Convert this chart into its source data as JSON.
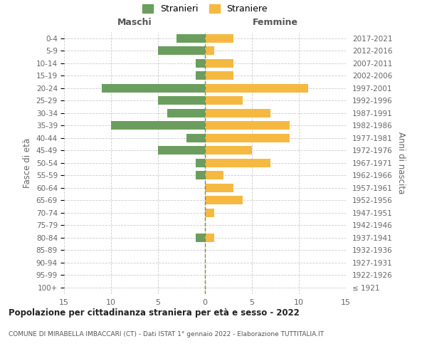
{
  "age_groups": [
    "100+",
    "95-99",
    "90-94",
    "85-89",
    "80-84",
    "75-79",
    "70-74",
    "65-69",
    "60-64",
    "55-59",
    "50-54",
    "45-49",
    "40-44",
    "35-39",
    "30-34",
    "25-29",
    "20-24",
    "15-19",
    "10-14",
    "5-9",
    "0-4"
  ],
  "birth_years": [
    "≤ 1921",
    "1922-1926",
    "1927-1931",
    "1932-1936",
    "1937-1941",
    "1942-1946",
    "1947-1951",
    "1952-1956",
    "1957-1961",
    "1962-1966",
    "1967-1971",
    "1972-1976",
    "1977-1981",
    "1982-1986",
    "1987-1991",
    "1992-1996",
    "1997-2001",
    "2002-2006",
    "2007-2011",
    "2012-2016",
    "2017-2021"
  ],
  "maschi": [
    0,
    0,
    0,
    0,
    1,
    0,
    0,
    0,
    0,
    1,
    1,
    5,
    2,
    10,
    4,
    5,
    11,
    1,
    1,
    5,
    3
  ],
  "femmine": [
    0,
    0,
    0,
    0,
    1,
    0,
    1,
    4,
    3,
    2,
    7,
    5,
    9,
    9,
    7,
    4,
    11,
    3,
    3,
    1,
    3
  ],
  "male_color": "#6b9e5e",
  "female_color": "#f5b942",
  "background_color": "#ffffff",
  "grid_color": "#cccccc",
  "title": "Popolazione per cittadinanza straniera per età e sesso - 2022",
  "subtitle": "COMUNE DI MIRABELLA IMBACCARI (CT) - Dati ISTAT 1° gennaio 2022 - Elaborazione TUTTITALIA.IT",
  "ylabel_left": "Fasce di età",
  "ylabel_right": "Anni di nascita",
  "xlabel_left": "Maschi",
  "xlabel_right": "Femmine",
  "legend_male": "Stranieri",
  "legend_female": "Straniere",
  "xlim": 15
}
